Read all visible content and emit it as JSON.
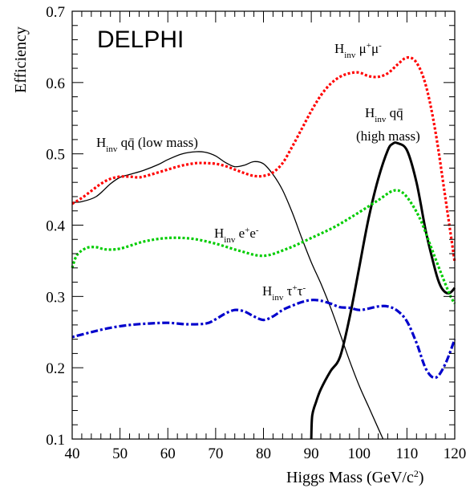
{
  "chart_data": {
    "type": "line",
    "title": "DELPHI",
    "xlabel": "Higgs Mass (GeV/c",
    "xlabel_sup": "2",
    "xlabel_end": ")",
    "ylabel": "Efficiency",
    "xlim": [
      40,
      120
    ],
    "ylim": [
      0.1,
      0.7
    ],
    "x_ticks": [
      40,
      50,
      60,
      70,
      80,
      90,
      100,
      110,
      120
    ],
    "y_ticks": [
      0.1,
      0.2,
      0.3,
      0.4,
      0.5,
      0.6,
      0.7
    ],
    "y_tick_labels": [
      "0.1",
      "0.2",
      "0.3",
      "0.4",
      "0.5",
      "0.6",
      "0.7"
    ],
    "grid": false,
    "series": [
      {
        "name": "H inv qq̄ (low mass)",
        "color": "#000000",
        "style": "solid-thin",
        "x": [
          40,
          42,
          45,
          48,
          50,
          52,
          55,
          58,
          60,
          63,
          66,
          68,
          70,
          72,
          74,
          76,
          78,
          80,
          82,
          84,
          86,
          88,
          90,
          92,
          94,
          96,
          98,
          100,
          102,
          104,
          105
        ],
        "y": [
          0.432,
          0.433,
          0.44,
          0.458,
          0.467,
          0.471,
          0.477,
          0.485,
          0.492,
          0.5,
          0.503,
          0.502,
          0.497,
          0.488,
          0.482,
          0.484,
          0.489,
          0.486,
          0.471,
          0.449,
          0.418,
          0.382,
          0.348,
          0.318,
          0.285,
          0.248,
          0.21,
          0.175,
          0.145,
          0.115,
          0.1
        ]
      },
      {
        "name": "H inv qq̄ (high mass)",
        "color": "#000000",
        "style": "solid-thick",
        "x": [
          90,
          90.2,
          91,
          92,
          94,
          96,
          98,
          100,
          102,
          104,
          106,
          107,
          108,
          110,
          112,
          114,
          116,
          117,
          118,
          119,
          120
        ],
        "y": [
          0.1,
          0.133,
          0.152,
          0.17,
          0.195,
          0.215,
          0.27,
          0.34,
          0.41,
          0.465,
          0.505,
          0.514,
          0.515,
          0.505,
          0.46,
          0.39,
          0.335,
          0.315,
          0.306,
          0.305,
          0.312
        ]
      },
      {
        "name": "H inv μ+μ-",
        "color": "#ff0000",
        "style": "dotted",
        "x": [
          40,
          42,
          44,
          46,
          48,
          50,
          52,
          54,
          56,
          58,
          60,
          62,
          64,
          66,
          68,
          70,
          72,
          74,
          76,
          78,
          80,
          82,
          84,
          86,
          88,
          90,
          92,
          94,
          96,
          98,
          100,
          102,
          104,
          106,
          108,
          110,
          112,
          114,
          116,
          118,
          120
        ],
        "y": [
          0.43,
          0.438,
          0.448,
          0.458,
          0.465,
          0.468,
          0.468,
          0.467,
          0.47,
          0.474,
          0.478,
          0.482,
          0.485,
          0.487,
          0.487,
          0.486,
          0.483,
          0.478,
          0.473,
          0.469,
          0.469,
          0.474,
          0.487,
          0.51,
          0.535,
          0.56,
          0.582,
          0.598,
          0.608,
          0.613,
          0.614,
          0.609,
          0.608,
          0.613,
          0.625,
          0.635,
          0.628,
          0.595,
          0.53,
          0.44,
          0.348
        ]
      },
      {
        "name": "H inv e+e-",
        "color": "#00cc00",
        "style": "dotted",
        "x": [
          40,
          41,
          43,
          45,
          47,
          50,
          55,
          60,
          65,
          70,
          75,
          80,
          85,
          90,
          95,
          100,
          104,
          107,
          109,
          111,
          113,
          115,
          117,
          119,
          120
        ],
        "y": [
          0.34,
          0.358,
          0.368,
          0.369,
          0.366,
          0.367,
          0.377,
          0.382,
          0.381,
          0.374,
          0.364,
          0.357,
          0.367,
          0.382,
          0.398,
          0.418,
          0.435,
          0.448,
          0.446,
          0.43,
          0.405,
          0.37,
          0.335,
          0.302,
          0.29
        ]
      },
      {
        "name": "H inv τ+τ-",
        "color": "#0000cc",
        "style": "dashdot",
        "x": [
          40,
          44,
          48,
          52,
          56,
          60,
          64,
          68,
          70,
          72,
          74,
          76,
          78,
          80,
          82,
          84,
          86,
          88,
          90,
          92,
          94,
          96,
          98,
          100,
          102,
          104,
          106,
          108,
          110,
          112,
          114,
          116,
          118,
          120
        ],
        "y": [
          0.243,
          0.25,
          0.256,
          0.26,
          0.262,
          0.263,
          0.261,
          0.262,
          0.268,
          0.276,
          0.281,
          0.279,
          0.272,
          0.267,
          0.272,
          0.281,
          0.287,
          0.292,
          0.295,
          0.294,
          0.29,
          0.285,
          0.284,
          0.281,
          0.283,
          0.286,
          0.286,
          0.28,
          0.265,
          0.235,
          0.198,
          0.186,
          0.205,
          0.24
        ]
      }
    ],
    "annotations": [
      {
        "id": "qq-low",
        "main": "H",
        "sub": "inv",
        "rest": " qq̄ (low mass)"
      },
      {
        "id": "mumu",
        "main": "H",
        "sub": "inv",
        "rest": " μ",
        "sup1": "+",
        "rest2": "μ",
        "sup2": "-"
      },
      {
        "id": "qq-high-1",
        "main": "H",
        "sub": "inv",
        "rest": " qq̄"
      },
      {
        "id": "qq-high-2",
        "text": "(high mass)"
      },
      {
        "id": "ee",
        "main": "H",
        "sub": "inv",
        "rest": " e",
        "sup1": "+",
        "rest2": "e",
        "sup2": "-"
      },
      {
        "id": "tautau",
        "main": "H",
        "sub": "inv",
        "rest": " τ",
        "sup1": "+",
        "rest2": "τ",
        "sup2": "-"
      }
    ]
  }
}
